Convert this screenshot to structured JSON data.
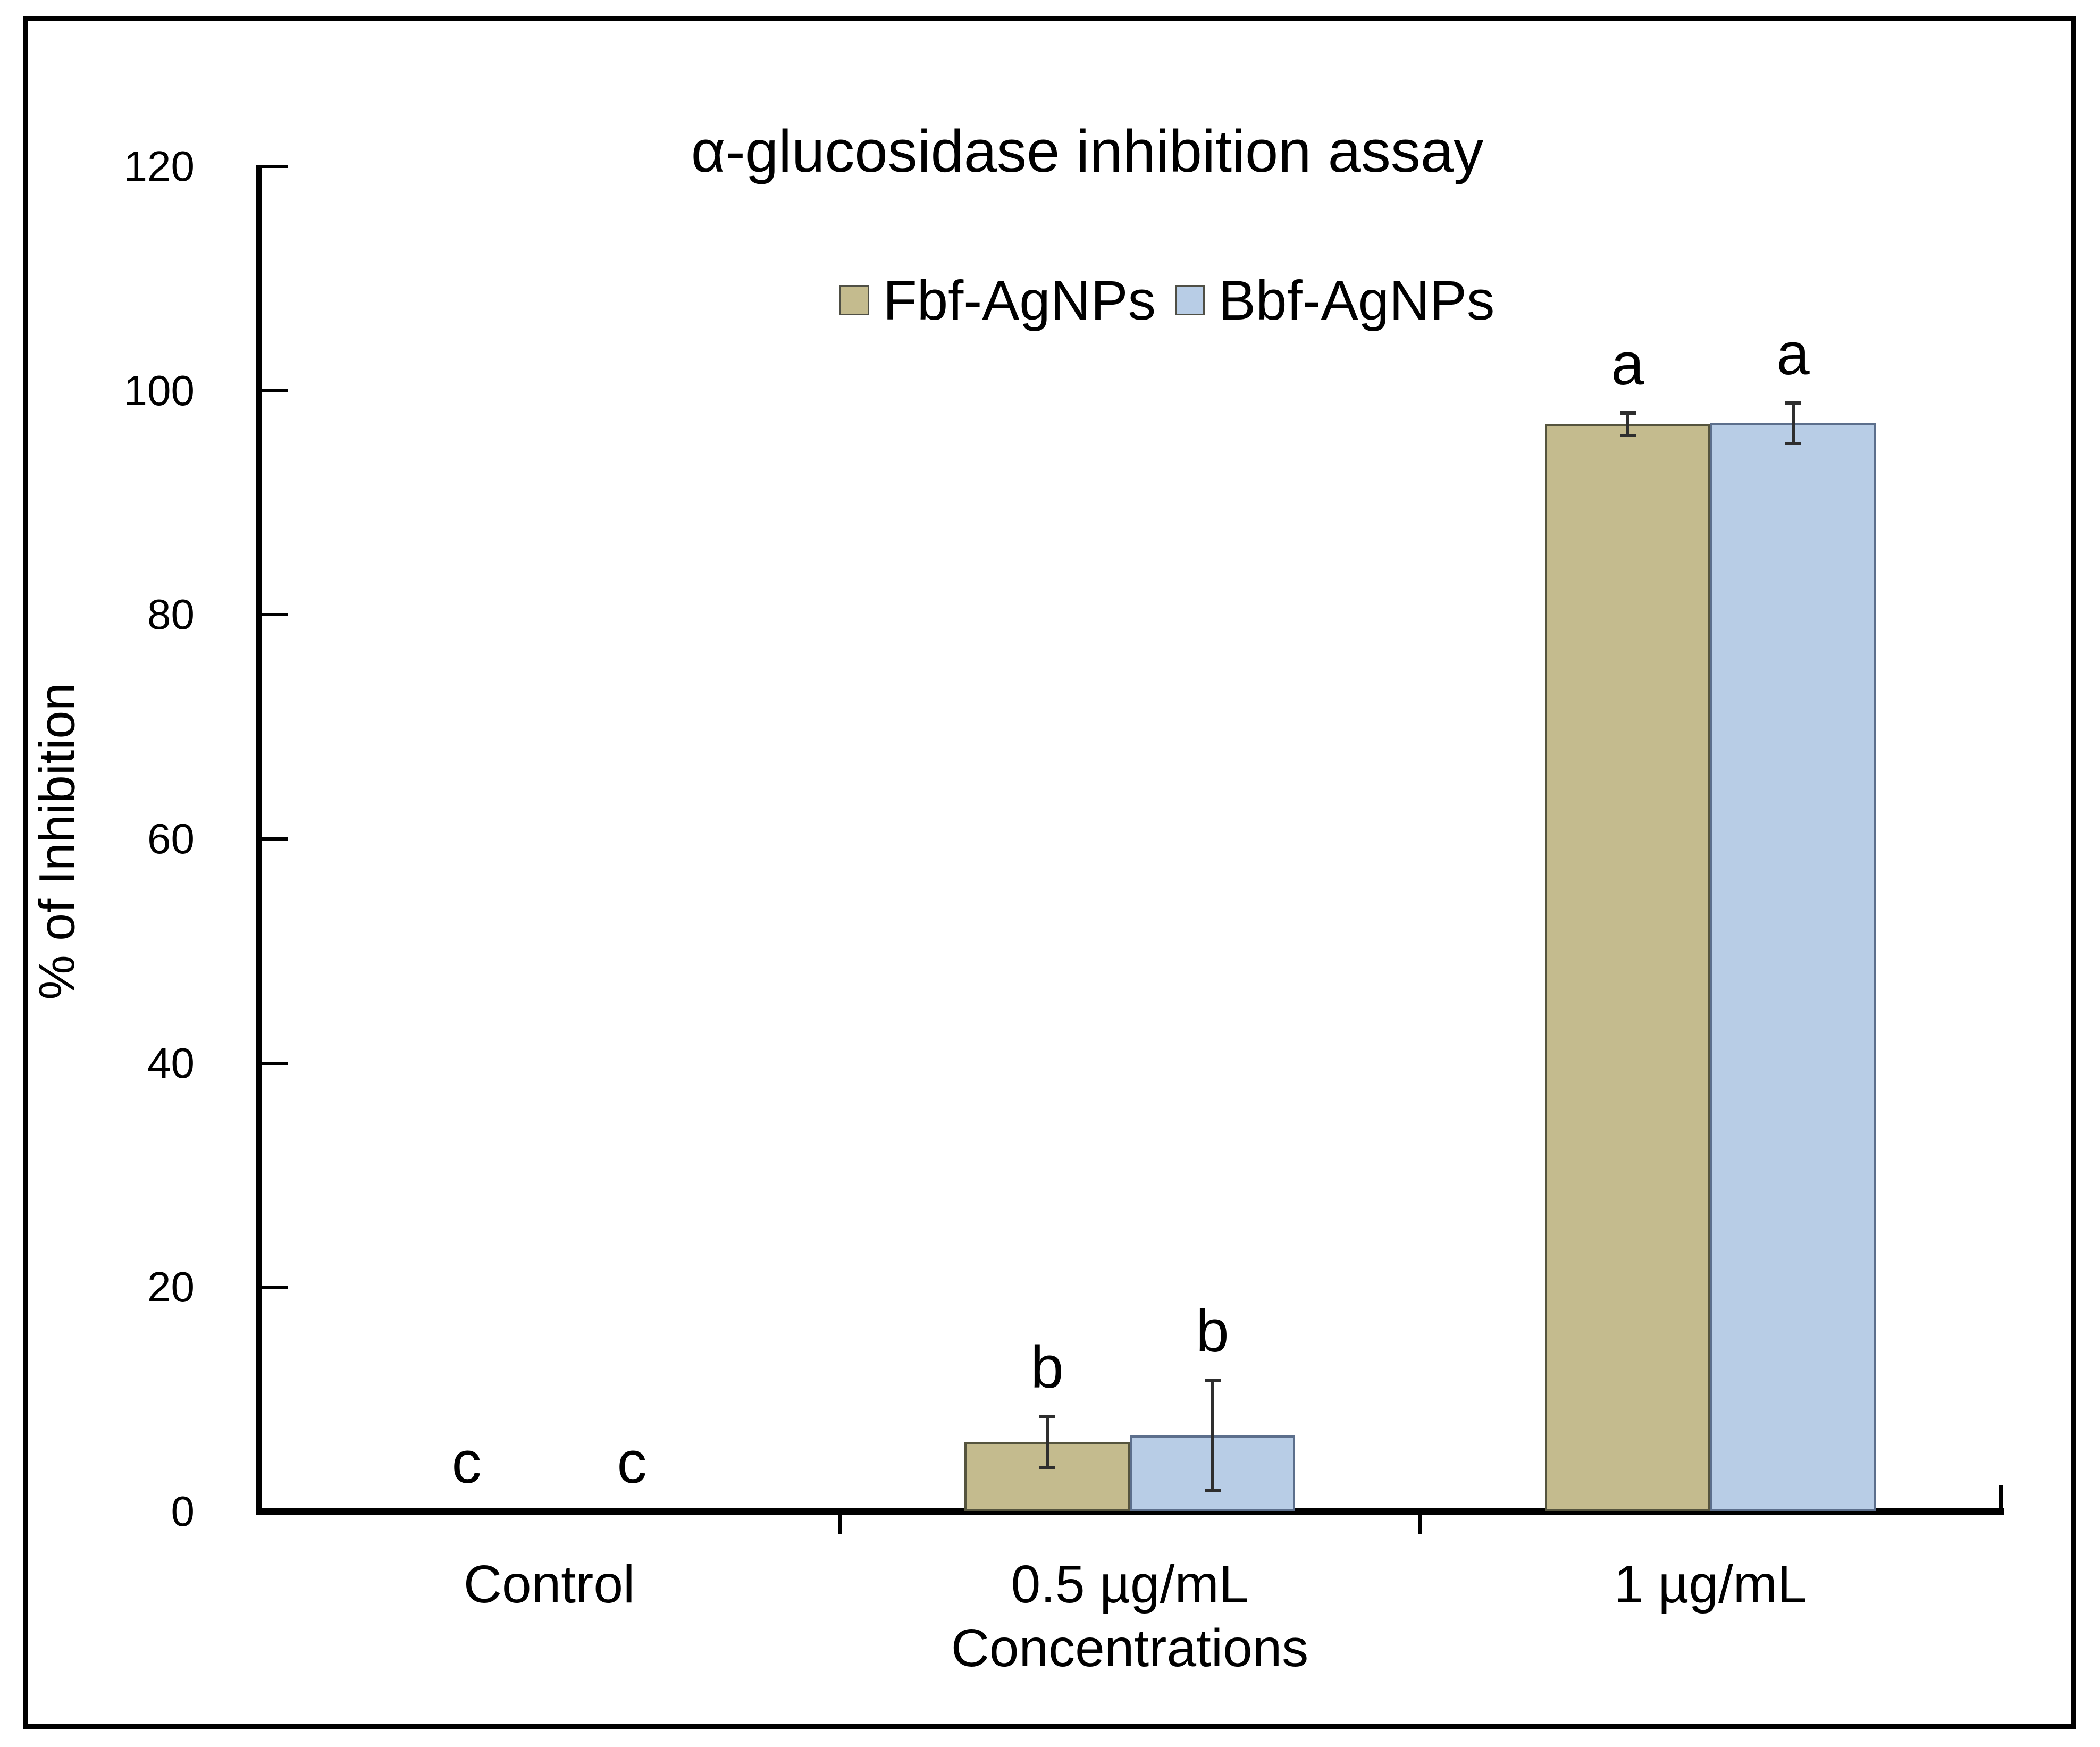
{
  "figure": {
    "background": "#ffffff",
    "frame_color": "#000000"
  },
  "chart_data": {
    "type": "bar",
    "title": "α-glucosidase inhibition assay",
    "xlabel": "Concentrations",
    "ylabel": "% of Inhibition",
    "categories": [
      "Control",
      "0.5 µg/mL",
      "1 µg/mL"
    ],
    "series": [
      {
        "name": "Fbf-AgNPs",
        "values": [
          0,
          6.2,
          97.0
        ],
        "errors": [
          0,
          2.3,
          1.0
        ],
        "sig_letters": [
          "c",
          "b",
          "a"
        ],
        "fill_color": "#c4bb8e",
        "border_color": "#55543e"
      },
      {
        "name": "Bbf-AgNPs",
        "values": [
          0,
          6.8,
          97.1
        ],
        "errors": [
          0,
          4.9,
          1.8
        ],
        "sig_letters": [
          "c",
          "b",
          "a"
        ],
        "fill_color": "#b8cde6",
        "border_color": "#5c6f8c"
      }
    ],
    "ylim": [
      0,
      120
    ],
    "ytick_step": 20,
    "ytick_labels": [
      "0",
      "20",
      "40",
      "60",
      "80",
      "100",
      "120"
    ],
    "legend_position": "top-center",
    "grid": false,
    "error_bar_color": "#2e2e2e",
    "axis_color": "#000000"
  }
}
